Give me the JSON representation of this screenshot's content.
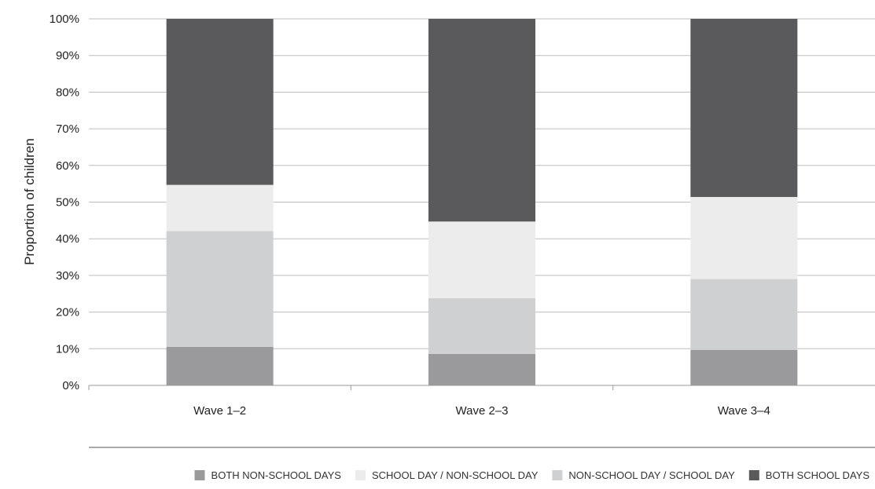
{
  "chart_data": {
    "type": "bar",
    "stacked": true,
    "title": "",
    "xlabel": "",
    "ylabel": "Proportion of children",
    "ylim": [
      0,
      100
    ],
    "y_ticks": [
      "0%",
      "10%",
      "20%",
      "30%",
      "40%",
      "50%",
      "60%",
      "70%",
      "80%",
      "90%",
      "100%"
    ],
    "categories": [
      "Wave 1–2",
      "Wave 2–3",
      "Wave 3–4"
    ],
    "grid": true,
    "legend_position": "bottom",
    "series": [
      {
        "name": "BOTH NON-SCHOOL DAYS",
        "color": "#9a9a9c",
        "values": [
          10.5,
          8.6,
          9.7
        ]
      },
      {
        "name": "NON-SCHOOL DAY / SCHOOL DAY",
        "color": "#cfd0d2",
        "values": [
          31.6,
          15.2,
          19.3
        ]
      },
      {
        "name": "SCHOOL DAY / NON-SCHOOL DAY",
        "color": "#ebeceb",
        "values": [
          12.6,
          20.9,
          22.4
        ]
      },
      {
        "name": "BOTH SCHOOL DAYS",
        "color": "#5a5a5c",
        "values": [
          45.3,
          55.3,
          48.6
        ]
      }
    ],
    "legend_order": [
      "BOTH NON-SCHOOL DAYS",
      "SCHOOL DAY / NON-SCHOOL DAY",
      "NON-SCHOOL DAY / SCHOOL DAY",
      "BOTH SCHOOL DAYS"
    ]
  }
}
